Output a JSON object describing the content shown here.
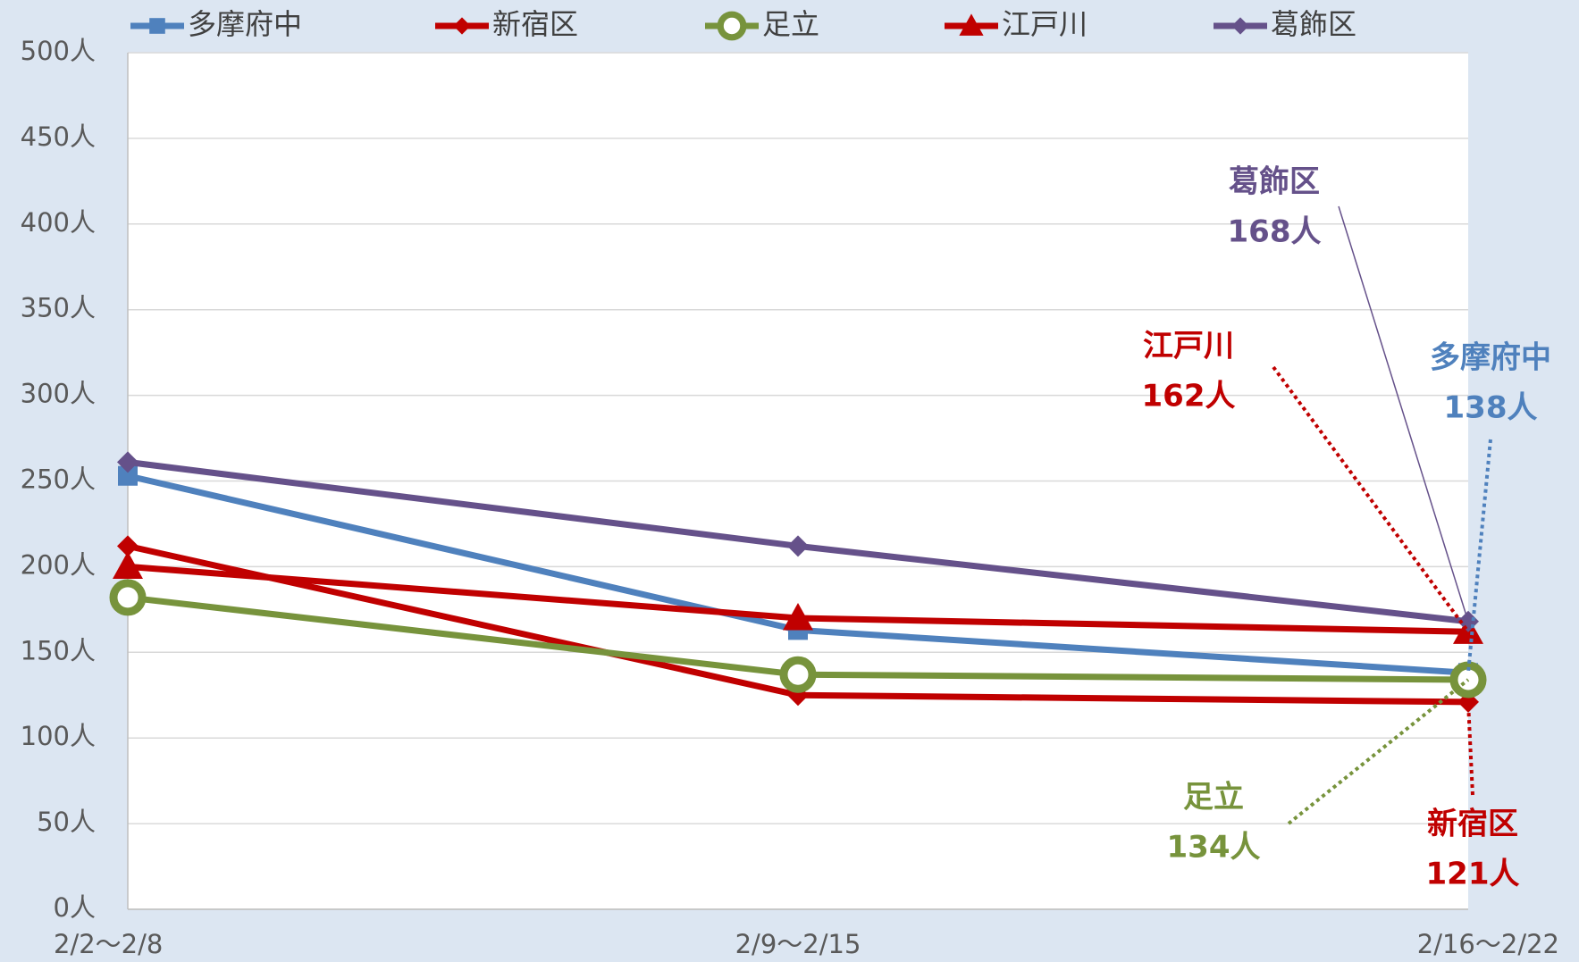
{
  "chart_data": {
    "type": "line",
    "categories": [
      "2/2～2/8",
      "2/9～2/15",
      "2/16～2/22"
    ],
    "series": [
      {
        "name": "多摩府中",
        "color": "#4f81bd",
        "marker": "square",
        "values": [
          253,
          163,
          138
        ],
        "value_labels": [
          null,
          null,
          "138人"
        ]
      },
      {
        "name": "新宿区",
        "color": "#c00000",
        "marker": "diamond",
        "values": [
          212,
          125,
          121
        ],
        "value_labels": [
          null,
          null,
          "121人"
        ]
      },
      {
        "name": "足立",
        "color": "#77933c",
        "marker": "circle",
        "values": [
          182,
          137,
          134
        ],
        "value_labels": [
          null,
          null,
          "134人"
        ]
      },
      {
        "name": "江戸川",
        "color": "#c00000",
        "marker": "triangle",
        "values": [
          200,
          170,
          162
        ],
        "value_labels": [
          null,
          null,
          "162人"
        ]
      },
      {
        "name": "葛飾区",
        "color": "#65518a",
        "marker": "diamond",
        "values": [
          261,
          212,
          168
        ],
        "value_labels": [
          null,
          null,
          "168人"
        ]
      }
    ],
    "ylim": [
      0,
      500
    ],
    "yticks": [
      {
        "value": 0,
        "label": "0人"
      },
      {
        "value": 50,
        "label": "50人"
      },
      {
        "value": 100,
        "label": "100人"
      },
      {
        "value": 150,
        "label": "150人"
      },
      {
        "value": 200,
        "label": "200人"
      },
      {
        "value": 250,
        "label": "250人"
      },
      {
        "value": 300,
        "label": "300人"
      },
      {
        "value": 350,
        "label": "350人"
      },
      {
        "value": 400,
        "label": "400人"
      },
      {
        "value": 450,
        "label": "450人"
      },
      {
        "value": 500,
        "label": "500人"
      }
    ],
    "grid": true,
    "legend": "top"
  }
}
